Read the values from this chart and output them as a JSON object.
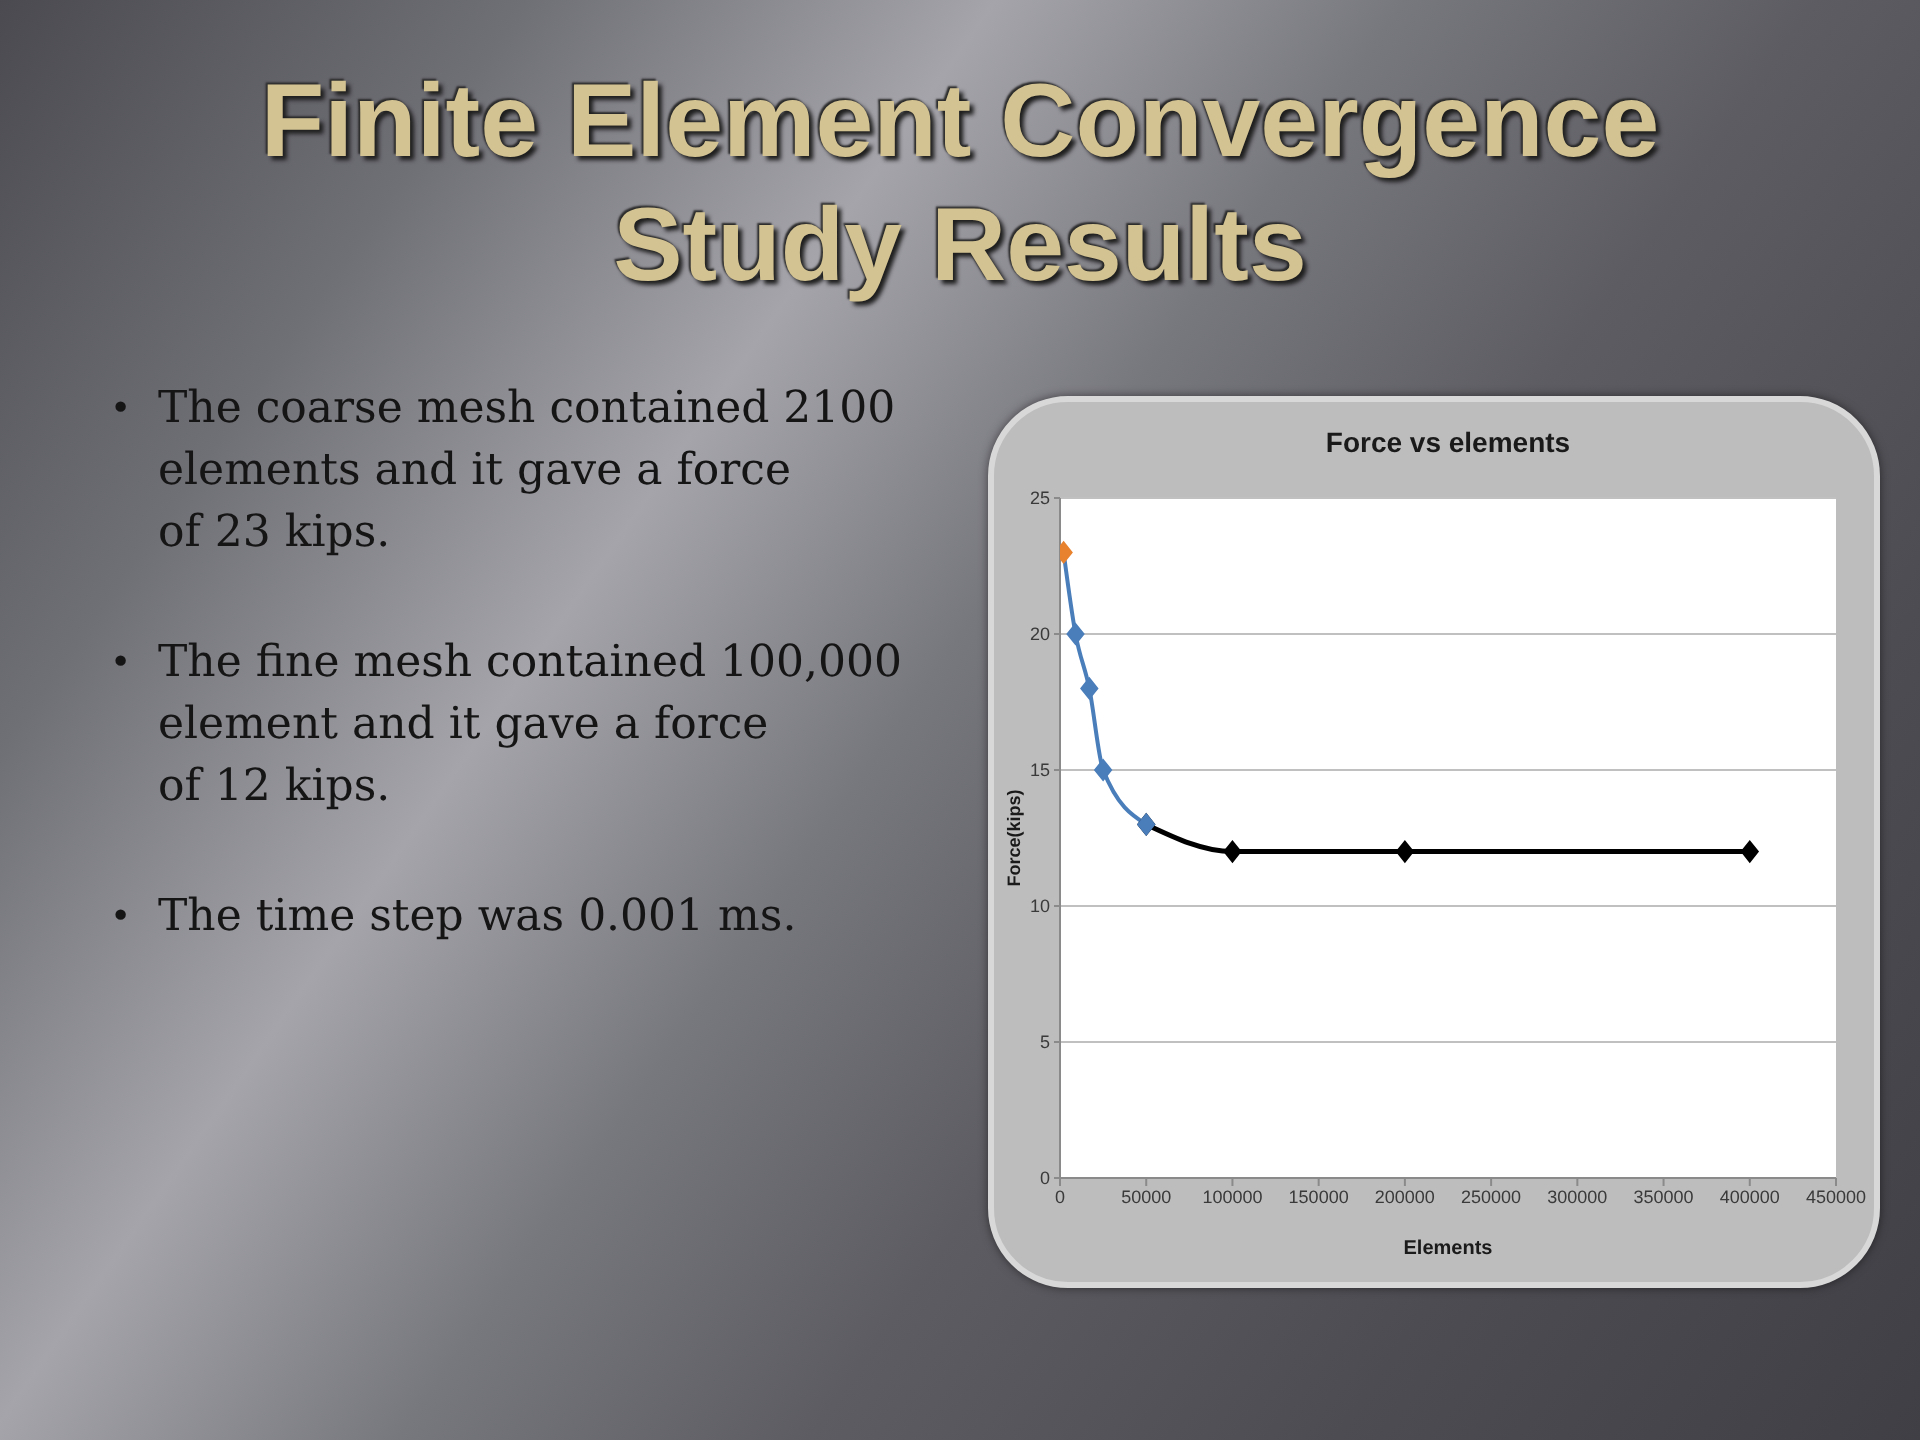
{
  "chart_data": {
    "type": "line",
    "title": "Finite Element Convergence Study Results",
    "subtitle": "Force vs elements",
    "xlabel": "Elements",
    "ylabel": "Force(kips)",
    "annotations": [
      "• The coarse mesh contained 2100\nelements and it gave a force\nof 23 kips.",
      "• The fine mesh contained 100,000\nelement and it gave a force\nof 12 kips.",
      "• The time step was 0.001 ms."
    ],
    "xlim": [
      0,
      450000
    ],
    "xticks": [
      0,
      50000,
      100000,
      150000,
      200000,
      250000,
      300000,
      350000,
      400000,
      450000
    ],
    "ylim": [
      0,
      25
    ],
    "yticks": [
      0,
      5,
      10,
      15,
      20,
      25
    ],
    "grid": "y",
    "marker": "diamond",
    "line_style": "solid",
    "series": [
      {
        "color": "#4a7ebb",
        "x": [
          2100,
          9000,
          17000,
          25000,
          50000
        ],
        "values": [
          23,
          20,
          18,
          15,
          13
        ],
        "colors": [
          "#e8822e",
          "#4a7ebb",
          "#4a7ebb",
          "#4a7ebb",
          "#4a7ebb"
        ]
      },
      {
        "color": "#000000",
        "x": [
          50000,
          100000,
          200000,
          400000
        ],
        "values": [
          13,
          12,
          12,
          12
        ]
      }
    ]
  }
}
